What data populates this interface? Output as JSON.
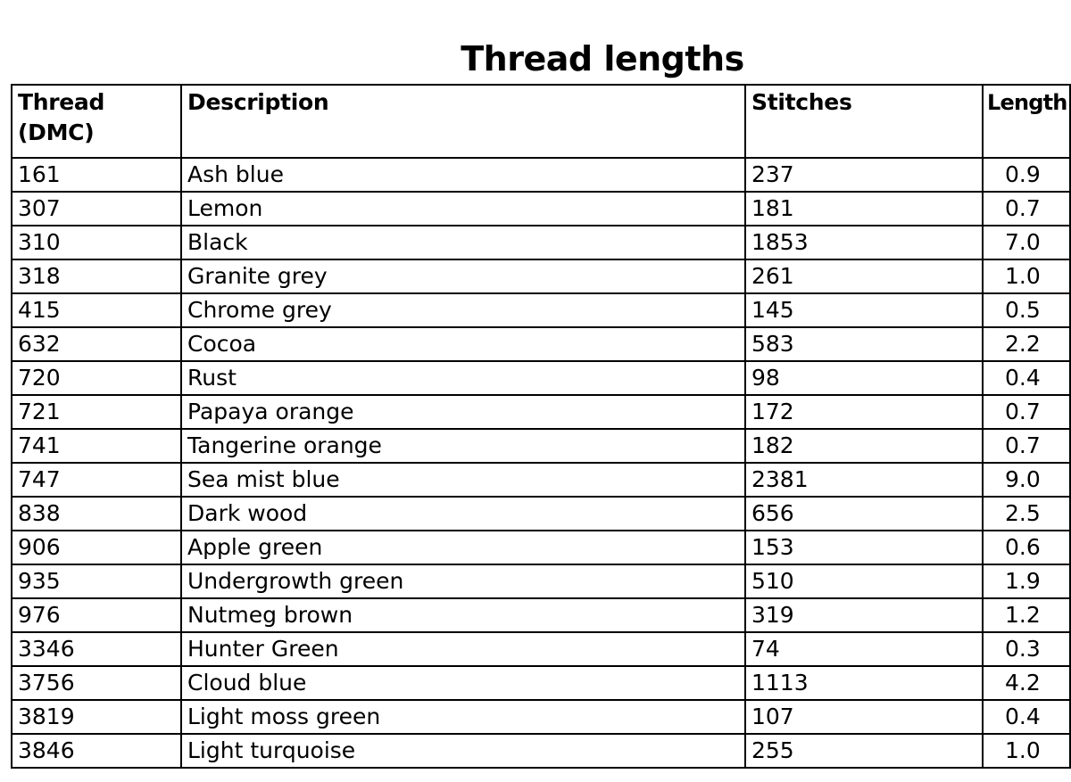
{
  "title": "Thread lengths",
  "columns": [
    "Thread (DMC)",
    "Description",
    "Stitches",
    "Length"
  ],
  "header_lines": {
    "thread_line1": "Thread",
    "thread_line2": "(DMC)"
  },
  "rows": [
    {
      "thread": "161",
      "description": "Ash blue",
      "stitches": "237",
      "length": "0.9"
    },
    {
      "thread": "307",
      "description": "Lemon",
      "stitches": "181",
      "length": "0.7"
    },
    {
      "thread": "310",
      "description": "Black",
      "stitches": "1853",
      "length": "7.0"
    },
    {
      "thread": "318",
      "description": "Granite grey",
      "stitches": "261",
      "length": "1.0"
    },
    {
      "thread": "415",
      "description": "Chrome grey",
      "stitches": "145",
      "length": "0.5"
    },
    {
      "thread": "632",
      "description": "Cocoa",
      "stitches": "583",
      "length": "2.2"
    },
    {
      "thread": "720",
      "description": "Rust",
      "stitches": "98",
      "length": "0.4"
    },
    {
      "thread": "721",
      "description": "Papaya orange",
      "stitches": "172",
      "length": "0.7"
    },
    {
      "thread": "741",
      "description": "Tangerine orange",
      "stitches": "182",
      "length": "0.7"
    },
    {
      "thread": "747",
      "description": "Sea mist blue",
      "stitches": "2381",
      "length": "9.0"
    },
    {
      "thread": "838",
      "description": "Dark wood",
      "stitches": "656",
      "length": "2.5"
    },
    {
      "thread": "906",
      "description": "Apple green",
      "stitches": "153",
      "length": "0.6"
    },
    {
      "thread": "935",
      "description": "Undergrowth green",
      "stitches": "510",
      "length": "1.9"
    },
    {
      "thread": "976",
      "description": "Nutmeg brown",
      "stitches": "319",
      "length": "1.2"
    },
    {
      "thread": "3346",
      "description": "Hunter Green",
      "stitches": "74",
      "length": "0.3"
    },
    {
      "thread": "3756",
      "description": "Cloud blue",
      "stitches": "1113",
      "length": "4.2"
    },
    {
      "thread": "3819",
      "description": "Light moss green",
      "stitches": "107",
      "length": "0.4"
    },
    {
      "thread": "3846",
      "description": "Light turquoise",
      "stitches": "255",
      "length": "1.0"
    }
  ]
}
